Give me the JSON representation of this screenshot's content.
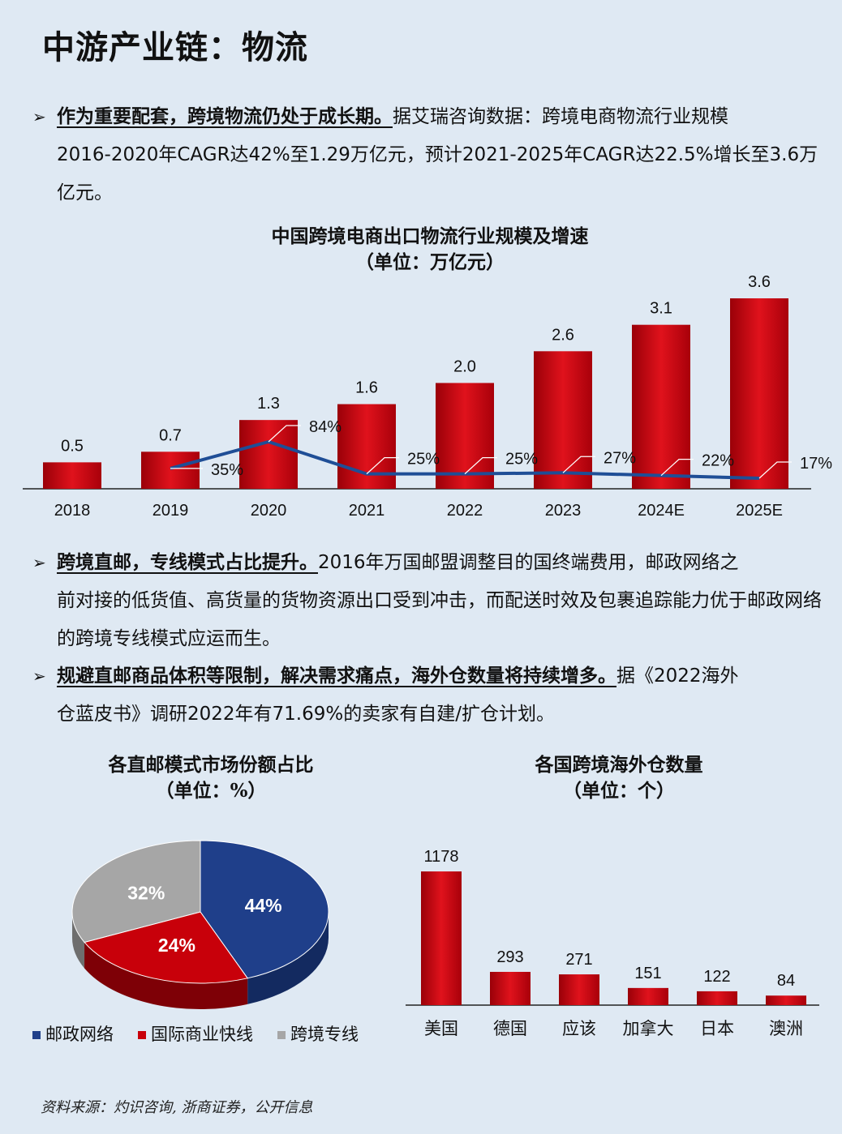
{
  "page": {
    "title": "中游产业链：物流",
    "source": "资料来源：灼识咨询, 浙商证券，公开信息"
  },
  "paragraphs": [
    {
      "bullet": "➢",
      "lead": "作为重要配套，跨境物流仍处于成长期。",
      "line1": "据艾瑞咨询数据：跨境电商物流行业规模",
      "rest": "2016-2020年CAGR达42%至1.29万亿元，预计2021-2025年CAGR达22.5%增长至3.6万亿元。"
    },
    {
      "bullet": "➢",
      "lead": "跨境直邮，专线模式占比提升。",
      "line1": "2016年万国邮盟调整目的国终端费用，邮政网络之",
      "rest": "前对接的低货值、高货量的货物资源出口受到冲击，而配送时效及包裹追踪能力优于邮政网络的跨境专线模式应运而生。"
    },
    {
      "bullet": "➢",
      "lead": "规避直邮商品体积等限制，解决需求痛点，海外仓数量将持续增多。",
      "line1": "据《2022海外",
      "rest": "仓蓝皮书》调研2022年有71.69%的卖家有自建/扩仓计划。"
    }
  ],
  "chart_data": [
    {
      "type": "bar",
      "title": "中国跨境电商出口物流行业规模及增速",
      "subtitle": "（单位：万亿元）",
      "categories": [
        "2018",
        "2019",
        "2020",
        "2021",
        "2022",
        "2023",
        "2024E",
        "2025E"
      ],
      "values": [
        0.5,
        0.7,
        1.3,
        1.6,
        2.0,
        2.6,
        3.1,
        3.6
      ],
      "value_labels": [
        "0.5",
        "0.7",
        "1.3",
        "1.6",
        "2.0",
        "2.6",
        "3.1",
        "3.6"
      ],
      "growth_line": {
        "type": "line",
        "values": [
          35,
          84,
          25,
          25,
          27,
          22,
          17
        ],
        "labels": [
          "35%",
          "84%",
          "25%",
          "25%",
          "27%",
          "22%",
          "17%"
        ],
        "start_category": "2019"
      },
      "ylim": [
        0,
        3.8
      ],
      "bar_color": "#c8000a",
      "line_color": "#1f4e96"
    },
    {
      "type": "pie",
      "title": "各直邮模式市场份额占比",
      "subtitle": "（单位：%）",
      "slices": [
        {
          "name": "邮政网络",
          "value": 44,
          "label": "44%",
          "color": "#1f3f8a"
        },
        {
          "name": "国际商业快线",
          "value": 24,
          "label": "24%",
          "color": "#c8000a"
        },
        {
          "name": "跨境专线",
          "value": 32,
          "label": "32%",
          "color": "#a6a6a6"
        }
      ],
      "legend": "bottom"
    },
    {
      "type": "bar",
      "title": "各国跨境海外仓数量",
      "subtitle": "（单位：个）",
      "categories": [
        "美国",
        "德国",
        "应该",
        "加拿大",
        "日本",
        "澳洲"
      ],
      "values": [
        1178,
        293,
        271,
        151,
        122,
        84
      ],
      "value_labels": [
        "1178",
        "293",
        "271",
        "151",
        "122",
        "84"
      ],
      "ylim": [
        0,
        1250
      ],
      "bar_color": "#c8000a"
    }
  ]
}
